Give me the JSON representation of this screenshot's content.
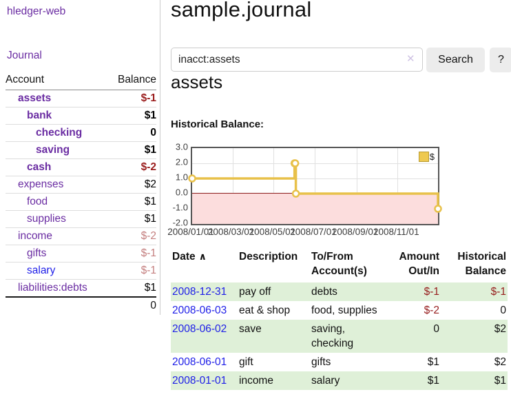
{
  "app": {
    "brand": "hledger-web",
    "nav_journal": "Journal"
  },
  "sidebar": {
    "header": {
      "account": "Account",
      "balance": "Balance"
    },
    "accounts": [
      {
        "name": "assets",
        "balance": "$-1",
        "depth": 1,
        "bold": true,
        "balance_style": "neg"
      },
      {
        "name": "bank",
        "balance": "$1",
        "depth": 2,
        "bold": true,
        "balance_style": "pos"
      },
      {
        "name": "checking",
        "balance": "0",
        "depth": 3,
        "bold": true,
        "balance_style": "pos"
      },
      {
        "name": "saving",
        "balance": "$1",
        "depth": 3,
        "bold": true,
        "balance_style": "pos"
      },
      {
        "name": "cash",
        "balance": "$-2",
        "depth": 2,
        "bold": true,
        "balance_style": "neg"
      },
      {
        "name": "expenses",
        "balance": "$2",
        "depth": 1,
        "bold": false,
        "balance_style": "pos"
      },
      {
        "name": "food",
        "balance": "$1",
        "depth": 2,
        "bold": false,
        "balance_style": "pos"
      },
      {
        "name": "supplies",
        "balance": "$1",
        "depth": 2,
        "bold": false,
        "balance_style": "pos"
      },
      {
        "name": "income",
        "balance": "$-2",
        "depth": 1,
        "bold": false,
        "balance_style": "mneg"
      },
      {
        "name": "gifts",
        "balance": "$-1",
        "depth": 2,
        "bold": false,
        "balance_style": "mneg"
      },
      {
        "name": "salary",
        "balance": "$-1",
        "depth": 2,
        "bold": false,
        "balance_style": "mneg",
        "link_color": "blue"
      },
      {
        "name": "liabilities:debts",
        "balance": "$1",
        "depth": 1,
        "bold": false,
        "balance_style": "pos"
      }
    ],
    "total": "0"
  },
  "header": {
    "title": "sample.journal"
  },
  "search": {
    "value": "inacct:assets",
    "clear_icon": "✕",
    "button_label": "Search",
    "help_label": "?"
  },
  "account_page": {
    "heading": "assets",
    "chart_label": "Historical Balance:"
  },
  "chart_data": {
    "type": "line",
    "title": "Historical Balance",
    "step": true,
    "series": [
      {
        "name": "$",
        "color": "#e8c14a",
        "points": [
          [
            "2008-01-01",
            1
          ],
          [
            "2008-06-01",
            2
          ],
          [
            "2008-06-02",
            2
          ],
          [
            "2008-06-03",
            0
          ],
          [
            "2008-12-31",
            -1
          ]
        ]
      }
    ],
    "xrange": [
      "2008-01-01",
      "2008-12-31"
    ],
    "ylim": [
      -2,
      3
    ],
    "ytick_labels": [
      "3.0",
      "2.0",
      "1.0",
      "0.0",
      "-1.0",
      "-2.0"
    ],
    "ytick_values": [
      3,
      2,
      1,
      0,
      -1,
      -2
    ],
    "xtick_labels": [
      "2008/01/01",
      "2008/03/01",
      "2008/05/01",
      "2008/07/01",
      "2008/09/01",
      "2008/11/01"
    ],
    "xtick_dates": [
      "2008-01-01",
      "2008-03-01",
      "2008-05-01",
      "2008-07-01",
      "2008-09-01",
      "2008-11-01"
    ],
    "grid": true,
    "negative_region_fill": "#fcdddd",
    "zero_line_color": "#8b1a1a",
    "legend": {
      "label": "$",
      "position": "top-right",
      "swatch_color": "#eec950"
    }
  },
  "register_table": {
    "headers": {
      "date": "Date",
      "sort_icon": "∧",
      "description": "Description",
      "accounts": "To/From Account(s)",
      "amount": "Amount Out/In",
      "balance": "Historical Balance"
    },
    "rows": [
      {
        "date": "2008-12-31",
        "description": "pay off",
        "accounts": "debts",
        "amount": "$-1",
        "balance": "$-1",
        "amount_negative": true,
        "balance_negative": true,
        "highlight": true
      },
      {
        "date": "2008-06-03",
        "description": "eat & shop",
        "accounts": "food, supplies",
        "amount": "$-2",
        "balance": "0",
        "amount_negative": true,
        "balance_negative": false,
        "highlight": false
      },
      {
        "date": "2008-06-02",
        "description": "save",
        "accounts": "saving, checking",
        "amount": "0",
        "balance": "$2",
        "amount_negative": false,
        "balance_negative": false,
        "highlight": true
      },
      {
        "date": "2008-06-01",
        "description": "gift",
        "accounts": "gifts",
        "amount": "$1",
        "balance": "$2",
        "amount_negative": false,
        "balance_negative": false,
        "highlight": false
      },
      {
        "date": "2008-01-01",
        "description": "income",
        "accounts": "salary",
        "amount": "$1",
        "balance": "$1",
        "amount_negative": false,
        "balance_negative": false,
        "highlight": true
      }
    ]
  }
}
